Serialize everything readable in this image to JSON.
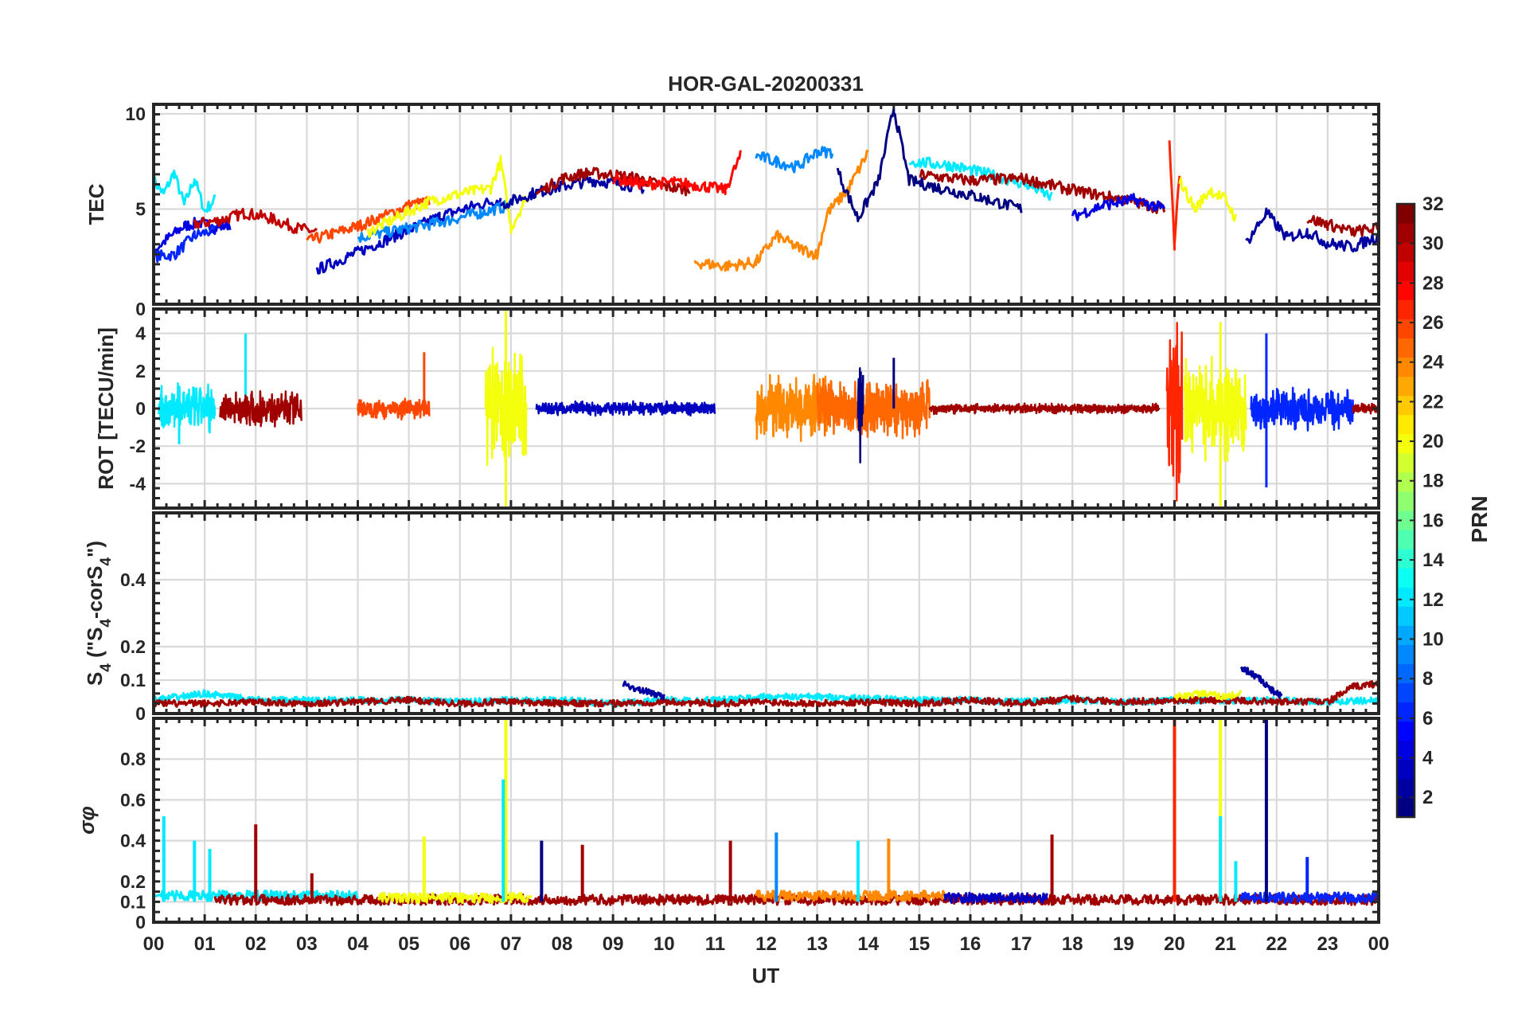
{
  "figure": {
    "title": "HOR-GAL-20200331",
    "xlabel": "UT",
    "colorbar_label": "PRN",
    "colorbar_ticks": [
      "2",
      "4",
      "6",
      "8",
      "10",
      "12",
      "14",
      "16",
      "18",
      "20",
      "22",
      "24",
      "26",
      "28",
      "30",
      "32"
    ]
  },
  "chart_data": [
    {
      "type": "line",
      "panel": "TEC",
      "ylabel": "TEC",
      "ylim": [
        0,
        10.5
      ],
      "yticks": [
        "5",
        "10"
      ],
      "xlim": [
        0,
        24
      ],
      "grid": true,
      "series": [
        {
          "prn": 12,
          "x": [
            0,
            0.2,
            0.4,
            0.6,
            0.8,
            1.0,
            1.2
          ],
          "y": [
            6.5,
            5.8,
            6.9,
            5.2,
            6.6,
            4.9,
            5.5
          ]
        },
        {
          "prn": 4,
          "x": [
            0,
            0.3,
            0.6,
            0.9,
            1.2,
            1.5
          ],
          "y": [
            2.8,
            3.5,
            4.1,
            4.3,
            4.0,
            4.2
          ]
        },
        {
          "prn": 6,
          "x": [
            0,
            0.4,
            0.8,
            1.2
          ],
          "y": [
            2.5,
            2.6,
            3.6,
            3.9
          ]
        },
        {
          "prn": 30,
          "x": [
            0.8,
            1.3,
            1.8,
            2.3,
            2.8,
            3.2
          ],
          "y": [
            4.2,
            4.4,
            4.8,
            4.5,
            4.0,
            3.8
          ]
        },
        {
          "prn": 26,
          "x": [
            3.0,
            3.5,
            4.0,
            4.5,
            5.0,
            5.4
          ],
          "y": [
            3.3,
            3.7,
            4.1,
            4.6,
            5.2,
            5.4
          ]
        },
        {
          "prn": 3,
          "x": [
            3.2,
            3.8,
            4.4,
            5.0,
            5.6,
            6.2,
            6.8
          ],
          "y": [
            1.8,
            2.5,
            3.2,
            3.9,
            4.6,
            5.1,
            5.5
          ]
        },
        {
          "prn": 9,
          "x": [
            4.0,
            4.8,
            5.6,
            6.4,
            7.0
          ],
          "y": [
            3.5,
            3.9,
            4.3,
            4.8,
            5.2
          ]
        },
        {
          "prn": 20,
          "x": [
            4.2,
            4.8,
            5.4,
            6.0,
            6.6,
            6.8,
            7.0,
            7.3
          ],
          "y": [
            3.8,
            4.6,
            5.4,
            5.8,
            6.1,
            7.5,
            4.0,
            5.6
          ]
        },
        {
          "prn": 2,
          "x": [
            6.8,
            7.4,
            8.0,
            8.6,
            9.2,
            9.6
          ],
          "y": [
            5.2,
            5.8,
            6.2,
            6.5,
            6.3,
            6.1
          ]
        },
        {
          "prn": 31,
          "x": [
            7.5,
            8.0,
            8.5,
            9.0,
            9.5,
            10.0,
            10.5
          ],
          "y": [
            5.8,
            6.6,
            6.9,
            6.8,
            6.6,
            6.2,
            6.0
          ]
        },
        {
          "prn": 28,
          "x": [
            9.0,
            9.6,
            10.2,
            10.8,
            11.2,
            11.5
          ],
          "y": [
            6.6,
            6.3,
            6.4,
            6.2,
            6.0,
            7.8
          ]
        },
        {
          "prn": 24,
          "x": [
            10.6,
            11.2,
            11.8,
            12.2,
            12.6,
            13.0,
            13.2,
            13.6,
            14.0
          ],
          "y": [
            2.2,
            2.0,
            2.2,
            3.6,
            3.0,
            2.6,
            4.8,
            6.0,
            8.0
          ]
        },
        {
          "prn": 9,
          "x": [
            11.8,
            12.2,
            12.6,
            13.0,
            13.3
          ],
          "y": [
            7.8,
            7.5,
            7.2,
            8.0,
            8.0
          ]
        },
        {
          "prn": 1,
          "x": [
            13.4,
            13.8,
            14.2,
            14.5,
            14.8,
            15.4,
            16.2,
            17.0
          ],
          "y": [
            7.0,
            4.5,
            6.5,
            10.3,
            6.5,
            6.1,
            5.6,
            5.0
          ]
        },
        {
          "prn": 12,
          "x": [
            14.8,
            15.6,
            16.4,
            17.2,
            17.6
          ],
          "y": [
            7.5,
            7.3,
            6.8,
            6.2,
            5.6
          ]
        },
        {
          "prn": 31,
          "x": [
            15.0,
            16.0,
            17.0,
            18.0,
            19.0,
            19.8
          ],
          "y": [
            6.8,
            6.5,
            6.6,
            6.0,
            5.5,
            5.0
          ]
        },
        {
          "prn": 4,
          "x": [
            18.0,
            18.6,
            19.2,
            19.8
          ],
          "y": [
            4.6,
            5.2,
            5.5,
            5.0
          ]
        },
        {
          "prn": 27,
          "x": [
            19.9,
            20.0,
            20.1
          ],
          "y": [
            8.5,
            3.0,
            7.0
          ]
        },
        {
          "prn": 20,
          "x": [
            20.1,
            20.4,
            20.7,
            21.0,
            21.2
          ],
          "y": [
            6.5,
            5.0,
            6.0,
            5.5,
            4.5
          ]
        },
        {
          "prn": 2,
          "x": [
            21.4,
            21.8,
            22.2,
            22.6,
            23.0,
            23.5,
            24.0
          ],
          "y": [
            3.2,
            4.8,
            3.5,
            3.8,
            3.2,
            3.0,
            3.6
          ]
        },
        {
          "prn": 31,
          "x": [
            22.6,
            23.0,
            23.5,
            24.0
          ],
          "y": [
            4.5,
            4.2,
            3.8,
            4.0
          ]
        }
      ]
    },
    {
      "type": "line",
      "panel": "ROT",
      "ylabel": "ROT [TECU/min]",
      "ylim": [
        -5.3,
        5.3
      ],
      "yticks": [
        "-4",
        "-2",
        "0",
        "2",
        "4"
      ],
      "top_tick": "0",
      "xlim": [
        0,
        24
      ],
      "grid": true,
      "bursts": [
        {
          "prn": 12,
          "x0": 0.1,
          "x1": 1.2,
          "amp": 1.5,
          "extra": [
            [
              0.5,
              -1.9
            ],
            [
              1.8,
              4.0
            ]
          ]
        },
        {
          "prn": 31,
          "x0": 1.3,
          "x1": 2.9,
          "amp": 1.0
        },
        {
          "prn": 26,
          "x0": 4.0,
          "x1": 5.4,
          "amp": 0.6,
          "extra": [
            [
              5.3,
              3.0
            ]
          ]
        },
        {
          "prn": 20,
          "x0": 6.5,
          "x1": 7.3,
          "amp": 3.5,
          "extra": [
            [
              6.9,
              5.2
            ],
            [
              6.9,
              -5.2
            ]
          ]
        },
        {
          "prn": 3,
          "x0": 7.5,
          "x1": 11.0,
          "amp": 0.4
        },
        {
          "prn": 24,
          "x0": 11.8,
          "x1": 13.2,
          "amp": 2.0
        },
        {
          "prn": 25,
          "x0": 13.0,
          "x1": 15.2,
          "amp": 1.8
        },
        {
          "prn": 1,
          "x0": 13.8,
          "x1": 13.9,
          "amp": 5.0,
          "extra": [
            [
              14.5,
              2.7
            ]
          ]
        },
        {
          "prn": 31,
          "x0": 15.2,
          "x1": 19.7,
          "amp": 0.3
        },
        {
          "prn": 27,
          "x0": 19.85,
          "x1": 20.15,
          "amp": 5.2
        },
        {
          "prn": 20,
          "x0": 20.2,
          "x1": 21.4,
          "amp": 3.0,
          "extra": [
            [
              20.9,
              4.6
            ],
            [
              20.9,
              -5.2
            ]
          ]
        },
        {
          "prn": 6,
          "x0": 21.5,
          "x1": 23.5,
          "amp": 1.2,
          "extra": [
            [
              21.8,
              4.0
            ],
            [
              21.8,
              -4.2
            ]
          ]
        },
        {
          "prn": 31,
          "x0": 23.5,
          "x1": 24.0,
          "amp": 0.3
        }
      ]
    },
    {
      "type": "line",
      "panel": "S4",
      "ylabel": "S4 (\"S4-corS4\")",
      "ylabel_main": "S",
      "ylabel_sub": "4",
      "ylabel_mid": " (\"S",
      "ylabel_mid_sub": "4",
      "ylabel_tail": "-corS",
      "ylabel_tail_sub": "4",
      "ylabel_end": "\")",
      "ylim": [
        0,
        0.6
      ],
      "yticks": [
        "0",
        "0.1",
        "0.2",
        "0.4"
      ],
      "xlim": [
        0,
        24
      ],
      "grid": true,
      "baseline": 0.03,
      "series": [
        {
          "prn": 12,
          "x": [
            0,
            0.5,
            1.0,
            1.5,
            2.0,
            3.0,
            4.0,
            5.0,
            6.0,
            7.0,
            8.0,
            9.0,
            10.0,
            11.0,
            12.0,
            13.0,
            14.0,
            15.0,
            16.0,
            17.0,
            18.0,
            19.0,
            20.0,
            21.0,
            22.0,
            23.0,
            24.0
          ],
          "y": [
            0.04,
            0.05,
            0.06,
            0.05,
            0.04,
            0.04,
            0.04,
            0.04,
            0.035,
            0.04,
            0.04,
            0.03,
            0.04,
            0.04,
            0.05,
            0.05,
            0.045,
            0.04,
            0.04,
            0.035,
            0.04,
            0.035,
            0.04,
            0.04,
            0.04,
            0.035,
            0.04
          ]
        },
        {
          "prn": 31,
          "x": [
            0,
            1.0,
            2.0,
            3.0,
            4.0,
            5.0,
            6.0,
            7.0,
            8.0,
            9.0,
            10.0,
            11.0,
            12.0,
            13.0,
            14.0,
            15.0,
            16.0,
            17.0,
            18.0,
            19.0,
            20.0,
            21.0,
            22.0,
            23.0,
            23.5,
            24.0
          ],
          "y": [
            0.03,
            0.03,
            0.035,
            0.03,
            0.035,
            0.04,
            0.03,
            0.035,
            0.03,
            0.03,
            0.035,
            0.03,
            0.035,
            0.03,
            0.035,
            0.03,
            0.04,
            0.03,
            0.045,
            0.035,
            0.04,
            0.04,
            0.035,
            0.035,
            0.08,
            0.09
          ]
        },
        {
          "prn": 2,
          "x": [
            9.2,
            9.5,
            9.8,
            10.0
          ],
          "y": [
            0.09,
            0.07,
            0.06,
            0.05
          ]
        },
        {
          "prn": 2,
          "x": [
            21.3,
            21.5,
            21.7,
            21.9,
            22.1
          ],
          "y": [
            0.14,
            0.12,
            0.1,
            0.07,
            0.05
          ]
        },
        {
          "prn": 20,
          "x": [
            20.0,
            20.5,
            21.0,
            21.3
          ],
          "y": [
            0.05,
            0.06,
            0.05,
            0.06
          ]
        }
      ]
    },
    {
      "type": "line",
      "panel": "sigma_phi",
      "ylabel": "σφ",
      "ylim": [
        0,
        1.0
      ],
      "yticks": [
        "0",
        "0.1",
        "0.2",
        "0.4",
        "0.6",
        "0.8"
      ],
      "xlim": [
        0,
        24
      ],
      "grid": true,
      "baseline": 0.1,
      "spikes": [
        {
          "prn": 12,
          "x": 0.2,
          "h": 0.52
        },
        {
          "prn": 12,
          "x": 0.8,
          "h": 0.4
        },
        {
          "prn": 12,
          "x": 1.1,
          "h": 0.36
        },
        {
          "prn": 31,
          "x": 2.0,
          "h": 0.48
        },
        {
          "prn": 31,
          "x": 3.1,
          "h": 0.24
        },
        {
          "prn": 20,
          "x": 5.3,
          "h": 0.42
        },
        {
          "prn": 20,
          "x": 6.9,
          "h": 1.0
        },
        {
          "prn": 12,
          "x": 6.85,
          "h": 0.7
        },
        {
          "prn": 1,
          "x": 7.6,
          "h": 0.4
        },
        {
          "prn": 31,
          "x": 8.4,
          "h": 0.38
        },
        {
          "prn": 31,
          "x": 11.3,
          "h": 0.4
        },
        {
          "prn": 9,
          "x": 12.2,
          "h": 0.44
        },
        {
          "prn": 12,
          "x": 13.8,
          "h": 0.4
        },
        {
          "prn": 24,
          "x": 14.4,
          "h": 0.41
        },
        {
          "prn": 31,
          "x": 17.6,
          "h": 0.43
        },
        {
          "prn": 27,
          "x": 20.0,
          "h": 1.0
        },
        {
          "prn": 20,
          "x": 20.9,
          "h": 1.0
        },
        {
          "prn": 12,
          "x": 20.9,
          "h": 0.52
        },
        {
          "prn": 12,
          "x": 21.2,
          "h": 0.3
        },
        {
          "prn": 1,
          "x": 21.8,
          "h": 1.0
        },
        {
          "prn": 6,
          "x": 22.6,
          "h": 0.32
        }
      ],
      "noise_series": [
        {
          "prn": 12,
          "x0": 0.0,
          "x1": 4.0,
          "level": 0.13
        },
        {
          "prn": 31,
          "x0": 1.2,
          "x1": 24.0,
          "level": 0.11
        },
        {
          "prn": 20,
          "x0": 4.4,
          "x1": 7.4,
          "level": 0.12
        },
        {
          "prn": 24,
          "x0": 11.8,
          "x1": 15.5,
          "level": 0.13
        },
        {
          "prn": 3,
          "x0": 15.5,
          "x1": 17.5,
          "level": 0.12
        },
        {
          "prn": 6,
          "x0": 21.3,
          "x1": 24.0,
          "level": 0.12
        }
      ]
    }
  ],
  "xticks": [
    "00",
    "01",
    "02",
    "03",
    "04",
    "05",
    "06",
    "07",
    "08",
    "09",
    "10",
    "11",
    "12",
    "13",
    "14",
    "15",
    "16",
    "17",
    "18",
    "19",
    "20",
    "21",
    "22",
    "23",
    "00"
  ]
}
